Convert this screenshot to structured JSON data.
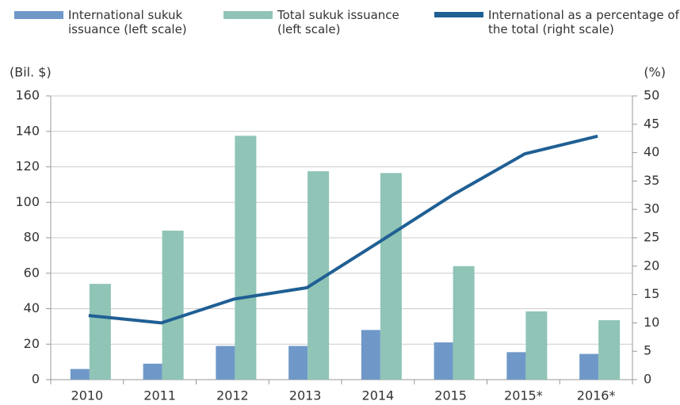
{
  "chart_data": {
    "type": "bar",
    "ylabel": "(Bil. $)",
    "y2label": "(%)",
    "categories": [
      "2010",
      "2011",
      "2012",
      "2013",
      "2014",
      "2015",
      "2015*",
      "2016*"
    ],
    "series": [
      {
        "name": "International sukuk issuance (left scale)",
        "color": "#6f98c8",
        "type": "bar",
        "values": [
          6,
          9,
          19,
          19,
          28,
          21,
          15.5,
          14.5
        ]
      },
      {
        "name": "Total sukuk issuance (left scale)",
        "color": "#8fc4b6",
        "type": "bar",
        "values": [
          54,
          84,
          137.5,
          117.5,
          116.5,
          64,
          38.5,
          33.5
        ]
      },
      {
        "name": "International as a percentage of the total (right scale)",
        "color": "#1f5f94",
        "type": "line",
        "axis": "y2",
        "values": [
          11.3,
          10,
          14.2,
          16.2,
          24.3,
          32.5,
          39.8,
          42.9
        ]
      }
    ],
    "ylim": [
      0,
      160
    ],
    "yticks": [
      0,
      20,
      40,
      60,
      80,
      100,
      120,
      140,
      160
    ],
    "y2lim": [
      0,
      50
    ],
    "y2ticks": [
      0,
      5,
      10,
      15,
      20,
      25,
      30,
      35,
      40,
      45,
      50
    ],
    "grid": true
  }
}
